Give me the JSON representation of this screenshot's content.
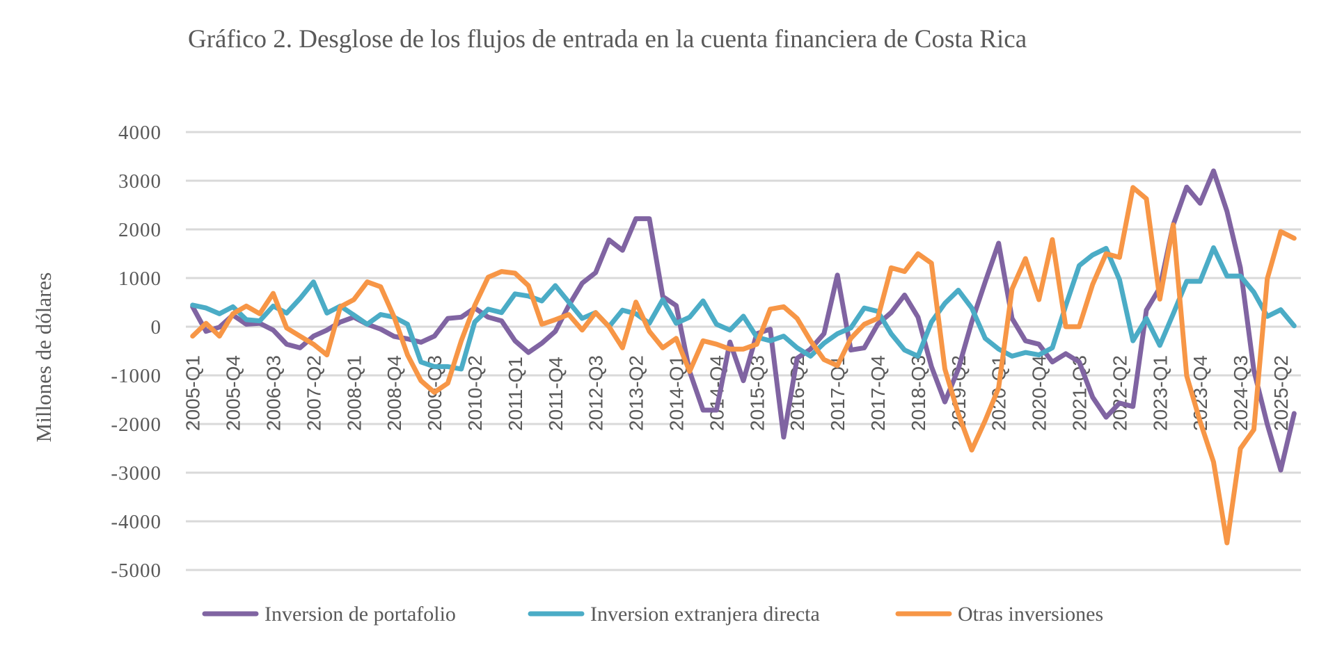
{
  "chart_data": {
    "type": "line",
    "title": "Gráfico 2. Desglose de los flujos de entrada en la cuenta financiera de Costa Rica",
    "xlabel": "",
    "ylabel": "Millones de dólares",
    "ylim": [
      -5000,
      4000
    ],
    "yticks": [
      4000,
      3000,
      2000,
      1000,
      0,
      -1000,
      -2000,
      -3000,
      -4000,
      -5000
    ],
    "grid": true,
    "legend_position": "bottom",
    "categories": [
      "2005-Q1",
      "2005-Q2",
      "2005-Q3",
      "2005-Q4",
      "2006-Q1",
      "2006-Q2",
      "2006-Q3",
      "2006-Q4",
      "2007-Q1",
      "2007-Q2",
      "2007-Q3",
      "2007-Q4",
      "2008-Q1",
      "2008-Q2",
      "2008-Q3",
      "2008-Q4",
      "2009-Q1",
      "2009-Q2",
      "2009-Q3",
      "2009-Q4",
      "2010-Q1",
      "2010-Q2",
      "2010-Q3",
      "2010-Q4",
      "2011-Q1",
      "2011-Q2",
      "2011-Q3",
      "2011-Q4",
      "2012-Q1",
      "2012-Q2",
      "2012-Q3",
      "2012-Q4",
      "2013-Q1",
      "2013-Q2",
      "2013-Q3",
      "2013-Q4",
      "2014-Q1",
      "2014-Q2",
      "2014-Q3",
      "2014-Q4",
      "2015-Q1",
      "2015-Q2",
      "2015-Q3",
      "2015-Q4",
      "2016-Q1",
      "2016-Q2",
      "2016-Q3",
      "2016-Q4",
      "2017-Q1",
      "2017-Q2",
      "2017-Q3",
      "2017-Q4",
      "2018-Q1",
      "2018-Q2",
      "2018-Q3",
      "2018-Q4",
      "2019-Q1",
      "2019-Q2",
      "2019-Q3",
      "2019-Q4",
      "2020-Q1",
      "2020-Q2",
      "2020-Q3",
      "2020-Q4",
      "2021-Q1",
      "2021-Q2",
      "2021-Q3",
      "2021-Q4",
      "2022-Q1",
      "2022-Q2",
      "2022-Q3",
      "2022-Q4",
      "2023-Q1",
      "2023-Q2",
      "2023-Q3",
      "2023-Q4",
      "2024-Q1",
      "2024-Q2",
      "2024-Q3",
      "2024-Q4",
      "2025-Q1",
      "2025-Q2",
      "2025-Q3"
    ],
    "xtick_labels": [
      "2005-Q1",
      "2005-Q4",
      "2006-Q3",
      "2007-Q2",
      "2008-Q1",
      "2008-Q4",
      "2009-Q3",
      "2010-Q2",
      "2011-Q1",
      "2011-Q4",
      "2012-Q3",
      "2013-Q2",
      "2014-Q1",
      "2014-Q4",
      "2015-Q3",
      "2016-Q2",
      "2017-Q1",
      "2017-Q4",
      "2018-Q3",
      "2019-Q2",
      "2020-Q1",
      "2020-Q4",
      "2021-Q3",
      "2022-Q2",
      "2023-Q1",
      "2023-Q4",
      "2024-Q3",
      "2025-Q2"
    ],
    "series": [
      {
        "name": "Inversion de portafolio",
        "color": "#8064A2",
        "values": [
          410,
          -95,
          -10,
          240,
          50,
          70,
          -70,
          -360,
          -435,
          -195,
          -70,
          95,
          195,
          50,
          -50,
          -200,
          -250,
          -320,
          -195,
          170,
          195,
          385,
          195,
          120,
          -290,
          -530,
          -340,
          -95,
          435,
          895,
          1110,
          1785,
          1570,
          2220,
          2220,
          620,
          435,
          -920,
          -1715,
          -1715,
          -315,
          -1110,
          -145,
          -50,
          -2270,
          -650,
          -460,
          -145,
          1060,
          -480,
          -435,
          50,
          290,
          650,
          195,
          -820,
          -1545,
          -870,
          95,
          920,
          1715,
          170,
          -290,
          -360,
          -725,
          -555,
          -725,
          -1450,
          -1860,
          -1570,
          -1640,
          340,
          800,
          2094,
          2870,
          2537,
          3202,
          2371,
          1208,
          -897,
          -2005,
          -2947,
          -1784
        ]
      },
      {
        "name": "Inversion extranjera directa",
        "color": "#4BACC6",
        "values": [
          445,
          385,
          265,
          410,
          145,
          120,
          425,
          280,
          580,
          920,
          280,
          425,
          240,
          50,
          250,
          195,
          50,
          -725,
          -820,
          -820,
          -870,
          95,
          360,
          290,
          675,
          630,
          530,
          845,
          505,
          170,
          290,
          0,
          340,
          265,
          70,
          555,
          70,
          195,
          530,
          50,
          -70,
          215,
          -215,
          -290,
          -195,
          -435,
          -605,
          -340,
          -145,
          -25,
          385,
          315,
          -145,
          -480,
          -605,
          95,
          480,
          750,
          385,
          -240,
          -460,
          -605,
          -530,
          -580,
          -435,
          435,
          1255,
          1475,
          1610,
          965,
          -290,
          170,
          -385,
          266,
          931,
          931,
          1623,
          1042,
          1042,
          709,
          211,
          349,
          17
        ]
      },
      {
        "name": "Otras inversiones",
        "color": "#F79646",
        "values": [
          -195,
          70,
          -195,
          265,
          425,
          265,
          685,
          -25,
          -195,
          -360,
          -580,
          410,
          555,
          920,
          820,
          200,
          -580,
          -1110,
          -1350,
          -1160,
          -290,
          435,
          1015,
          1135,
          1100,
          845,
          50,
          145,
          250,
          -70,
          290,
          0,
          -435,
          505,
          -95,
          -435,
          -240,
          -920,
          -290,
          -360,
          -460,
          -460,
          -360,
          360,
          410,
          170,
          -290,
          -675,
          -800,
          -240,
          50,
          170,
          1210,
          1135,
          1500,
          1305,
          -870,
          -1790,
          -2535,
          -1930,
          -1255,
          775,
          1400,
          555,
          1790,
          0,
          0,
          870,
          1500,
          1425,
          2860,
          2630,
          565,
          2094,
          -1008,
          -1950,
          -2781,
          -4443,
          -2504,
          -2116,
          986,
          1956,
          1817
        ]
      }
    ]
  }
}
